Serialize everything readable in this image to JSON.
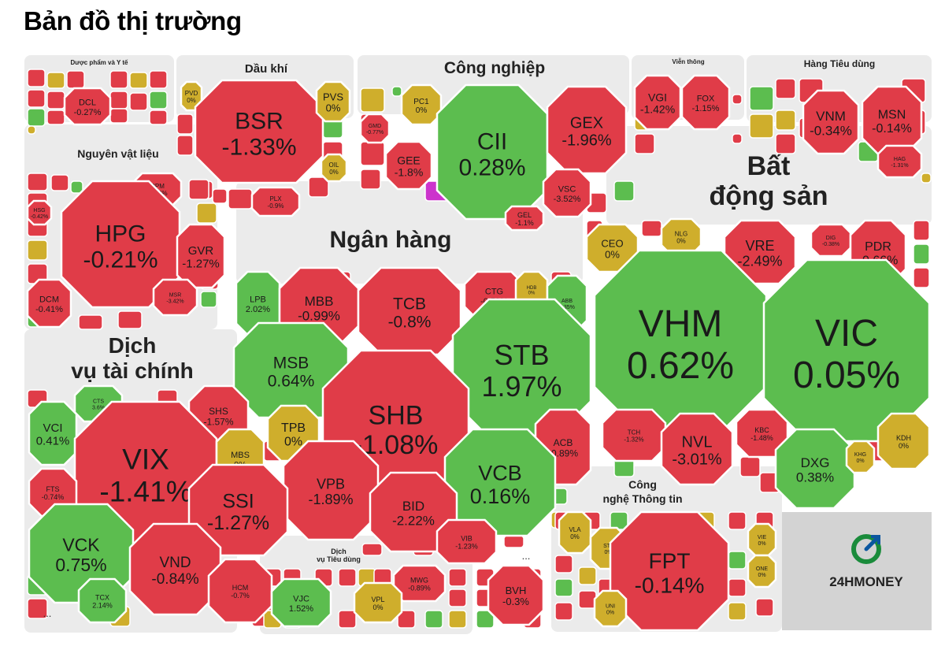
{
  "title": "Bản đồ thị trường",
  "brand": {
    "name": "24HMONEY",
    "color": "#1a8b3b",
    "accent": "#0b57a0"
  },
  "colors": {
    "down": "#e03c48",
    "up": "#5cbd4f",
    "flat": "#cfae2c",
    "ceiling": "#cc33cc",
    "floor": "#33cccc",
    "group_bg": "#ebebeb"
  },
  "sectors": [
    {
      "label": "Dược phẩm và Y tế"
    },
    {
      "label": "Dầu khí"
    },
    {
      "label": "Công nghiệp"
    },
    {
      "label": "Viễn thông"
    },
    {
      "label": "Hàng Tiêu dùng"
    },
    {
      "label": "Nguyên vật liệu"
    },
    {
      "label": "Bất",
      "label2": "động sản"
    },
    {
      "label": "Ngân hàng"
    },
    {
      "label": "Dịch",
      "label2": "vụ tài chính"
    },
    {
      "label": "Công",
      "label2": "nghệ Thông tin"
    },
    {
      "label": "Dịch",
      "label2": "vụ Tiêu dùng"
    }
  ],
  "stocks": [
    {
      "t": "DCL",
      "v": "-0.27%",
      "s": "d"
    },
    {
      "t": "PVD",
      "v": "0%",
      "s": "f"
    },
    {
      "t": "BSR",
      "v": "-1.33%",
      "s": "d"
    },
    {
      "t": "PVS",
      "v": "0%",
      "s": "f"
    },
    {
      "t": "OIL",
      "v": "0%",
      "s": "f"
    },
    {
      "t": "PLX",
      "v": "-0.9%",
      "s": "d"
    },
    {
      "t": "PC1",
      "v": "0%",
      "s": "f"
    },
    {
      "t": "GMD",
      "v": "-0.77%",
      "s": "d"
    },
    {
      "t": "GEE",
      "v": "-1.8%",
      "s": "d"
    },
    {
      "t": "CII",
      "v": "0.28%",
      "s": "u"
    },
    {
      "t": "GEX",
      "v": "-1.96%",
      "s": "d"
    },
    {
      "t": "VSC",
      "v": "-3.52%",
      "s": "d"
    },
    {
      "t": "GEL",
      "v": "-1.1%",
      "s": "d"
    },
    {
      "t": "VGI",
      "v": "-1.42%",
      "s": "d"
    },
    {
      "t": "FOX",
      "v": "-1.15%",
      "s": "d"
    },
    {
      "t": "VNM",
      "v": "-0.34%",
      "s": "d"
    },
    {
      "t": "MSN",
      "v": "-0.14%",
      "s": "d"
    },
    {
      "t": "HAG",
      "v": "-1.31%",
      "s": "d"
    },
    {
      "t": "HSG",
      "v": "-0.42%",
      "s": "d"
    },
    {
      "t": "DPM",
      "v": "-0.84%",
      "s": "d"
    },
    {
      "t": "HPG",
      "v": "-0.21%",
      "s": "d"
    },
    {
      "t": "GVR",
      "v": "-1.27%",
      "s": "d"
    },
    {
      "t": "DCM",
      "v": "-0.41%",
      "s": "d"
    },
    {
      "t": "MSR",
      "v": "-3.42%",
      "s": "d"
    },
    {
      "t": "CEO",
      "v": "0%",
      "s": "f"
    },
    {
      "t": "NLG",
      "v": "0%",
      "s": "f"
    },
    {
      "t": "VRE",
      "v": "-2.49%",
      "s": "d"
    },
    {
      "t": "DIG",
      "v": "-0.38%",
      "s": "d"
    },
    {
      "t": "PDR",
      "v": "-0.66%",
      "s": "d"
    },
    {
      "t": "VHM",
      "v": "0.62%",
      "s": "u"
    },
    {
      "t": "VIC",
      "v": "0.05%",
      "s": "u"
    },
    {
      "t": "TCH",
      "v": "-1.32%",
      "s": "d"
    },
    {
      "t": "NVL",
      "v": "-3.01%",
      "s": "d"
    },
    {
      "t": "KBC",
      "v": "-1.48%",
      "s": "d"
    },
    {
      "t": "DXG",
      "v": "0.38%",
      "s": "u"
    },
    {
      "t": "KHG",
      "v": "0%",
      "s": "f"
    },
    {
      "t": "KDH",
      "v": "0%",
      "s": "f"
    },
    {
      "t": "LPB",
      "v": "2.02%",
      "s": "u"
    },
    {
      "t": "MBB",
      "v": "-0.99%",
      "s": "d"
    },
    {
      "t": "TCB",
      "v": "-0.8%",
      "s": "d"
    },
    {
      "t": "CTG",
      "v": "-0.59%",
      "s": "d"
    },
    {
      "t": "HDB",
      "v": "0%",
      "s": "f"
    },
    {
      "t": "ABB",
      "v": "2.35%",
      "s": "u"
    },
    {
      "t": "MSB",
      "v": "0.64%",
      "s": "u"
    },
    {
      "t": "STB",
      "v": "1.97%",
      "s": "u"
    },
    {
      "t": "TPB",
      "v": "0%",
      "s": "f"
    },
    {
      "t": "SHB",
      "v": "-1.08%",
      "s": "d"
    },
    {
      "t": "ACB",
      "v": "-0.89%",
      "s": "d"
    },
    {
      "t": "VPB",
      "v": "-1.89%",
      "s": "d"
    },
    {
      "t": "VCB",
      "v": "0.16%",
      "s": "u"
    },
    {
      "t": "BID",
      "v": "-2.22%",
      "s": "d"
    },
    {
      "t": "VIB",
      "v": "-1.23%",
      "s": "d"
    },
    {
      "t": "CTS",
      "v": "3.6%",
      "s": "u"
    },
    {
      "t": "VCI",
      "v": "0.41%",
      "s": "u"
    },
    {
      "t": "SHS",
      "v": "-1.57%",
      "s": "d"
    },
    {
      "t": "VIX",
      "v": "-1.41%",
      "s": "d"
    },
    {
      "t": "MBS",
      "v": "0%",
      "s": "f"
    },
    {
      "t": "FTS",
      "v": "-0.74%",
      "s": "d"
    },
    {
      "t": "SSI",
      "v": "-1.27%",
      "s": "d"
    },
    {
      "t": "VCK",
      "v": "0.75%",
      "s": "u"
    },
    {
      "t": "VND",
      "v": "-0.84%",
      "s": "d"
    },
    {
      "t": "HCM",
      "v": "-0.7%",
      "s": "d"
    },
    {
      "t": "TCX",
      "v": "2.14%",
      "s": "u"
    },
    {
      "t": "MWG",
      "v": "-0.89%",
      "s": "d"
    },
    {
      "t": "VJC",
      "v": "1.52%",
      "s": "u"
    },
    {
      "t": "VPL",
      "v": "0%",
      "s": "f"
    },
    {
      "t": "BVH",
      "v": "-0.3%",
      "s": "d"
    },
    {
      "t": "VLA",
      "v": "0%",
      "s": "f"
    },
    {
      "t": "ST8",
      "v": "0%",
      "s": "f"
    },
    {
      "t": "FPT",
      "v": "-0.14%",
      "s": "d"
    },
    {
      "t": "VIE",
      "v": "0%",
      "s": "f"
    },
    {
      "t": "ONE",
      "v": "0%",
      "s": "f"
    },
    {
      "t": "UNI",
      "v": "0%",
      "s": "f"
    }
  ],
  "filler": [
    "d",
    "f",
    "d",
    "d",
    "d",
    "u",
    "d",
    "d",
    "f",
    "d",
    "d",
    "d",
    "u",
    "d",
    "d",
    "f",
    "d",
    "d",
    "u",
    "d",
    "d",
    "d",
    "d",
    "f",
    "d",
    "u",
    "d",
    "d",
    "c",
    "d",
    "u",
    "d",
    "f",
    "d",
    "d",
    "d",
    "u",
    "f",
    "d",
    "d",
    "f",
    "d",
    "d",
    "u",
    "d",
    "d",
    "f",
    "d",
    "d",
    "u",
    "d",
    "d",
    "f",
    "d",
    "u",
    "d",
    "d",
    "d",
    "f",
    "d",
    "u",
    "d",
    "d",
    "f",
    "d",
    "d",
    "u",
    "d",
    "f",
    "d",
    "d",
    "d",
    "u",
    "d",
    "d",
    "f",
    "d",
    "d",
    "d",
    "u",
    "f",
    "d",
    "d",
    "d",
    "d",
    "u",
    "d",
    "d",
    "f",
    "d",
    "u",
    "d",
    "d",
    "f",
    "d",
    "d",
    "u",
    "d",
    "f",
    "d",
    "d",
    "d",
    "u",
    "d",
    "d",
    "f",
    "d",
    "d",
    "u",
    "d",
    "f",
    "d",
    "d",
    "d",
    "u",
    "d",
    "d",
    "f",
    "d",
    "d",
    "d",
    "u",
    "f",
    "d",
    "d",
    "d",
    "u",
    "d",
    "f",
    "d",
    "d",
    "u",
    "d",
    "d",
    "f",
    "d",
    "d",
    "u",
    "d",
    "d",
    "f",
    "d",
    "u",
    "d",
    "f",
    "d",
    "d",
    "d",
    "u",
    "d",
    "f",
    "d",
    "d",
    "u",
    "d",
    "d",
    "f",
    "d",
    "u",
    "d",
    "d",
    "f",
    "d",
    "c",
    "d",
    "u",
    "d",
    "f",
    "d",
    "d",
    "u",
    "d",
    "f",
    "d",
    "d",
    "u",
    "d",
    "f",
    "d",
    "d",
    "u",
    "d",
    "d",
    "d",
    "f",
    "d",
    "u",
    "d",
    "d"
  ],
  "more_label": "...",
  "small_marker": "...",
  "logo_text": "24HMONEY"
}
